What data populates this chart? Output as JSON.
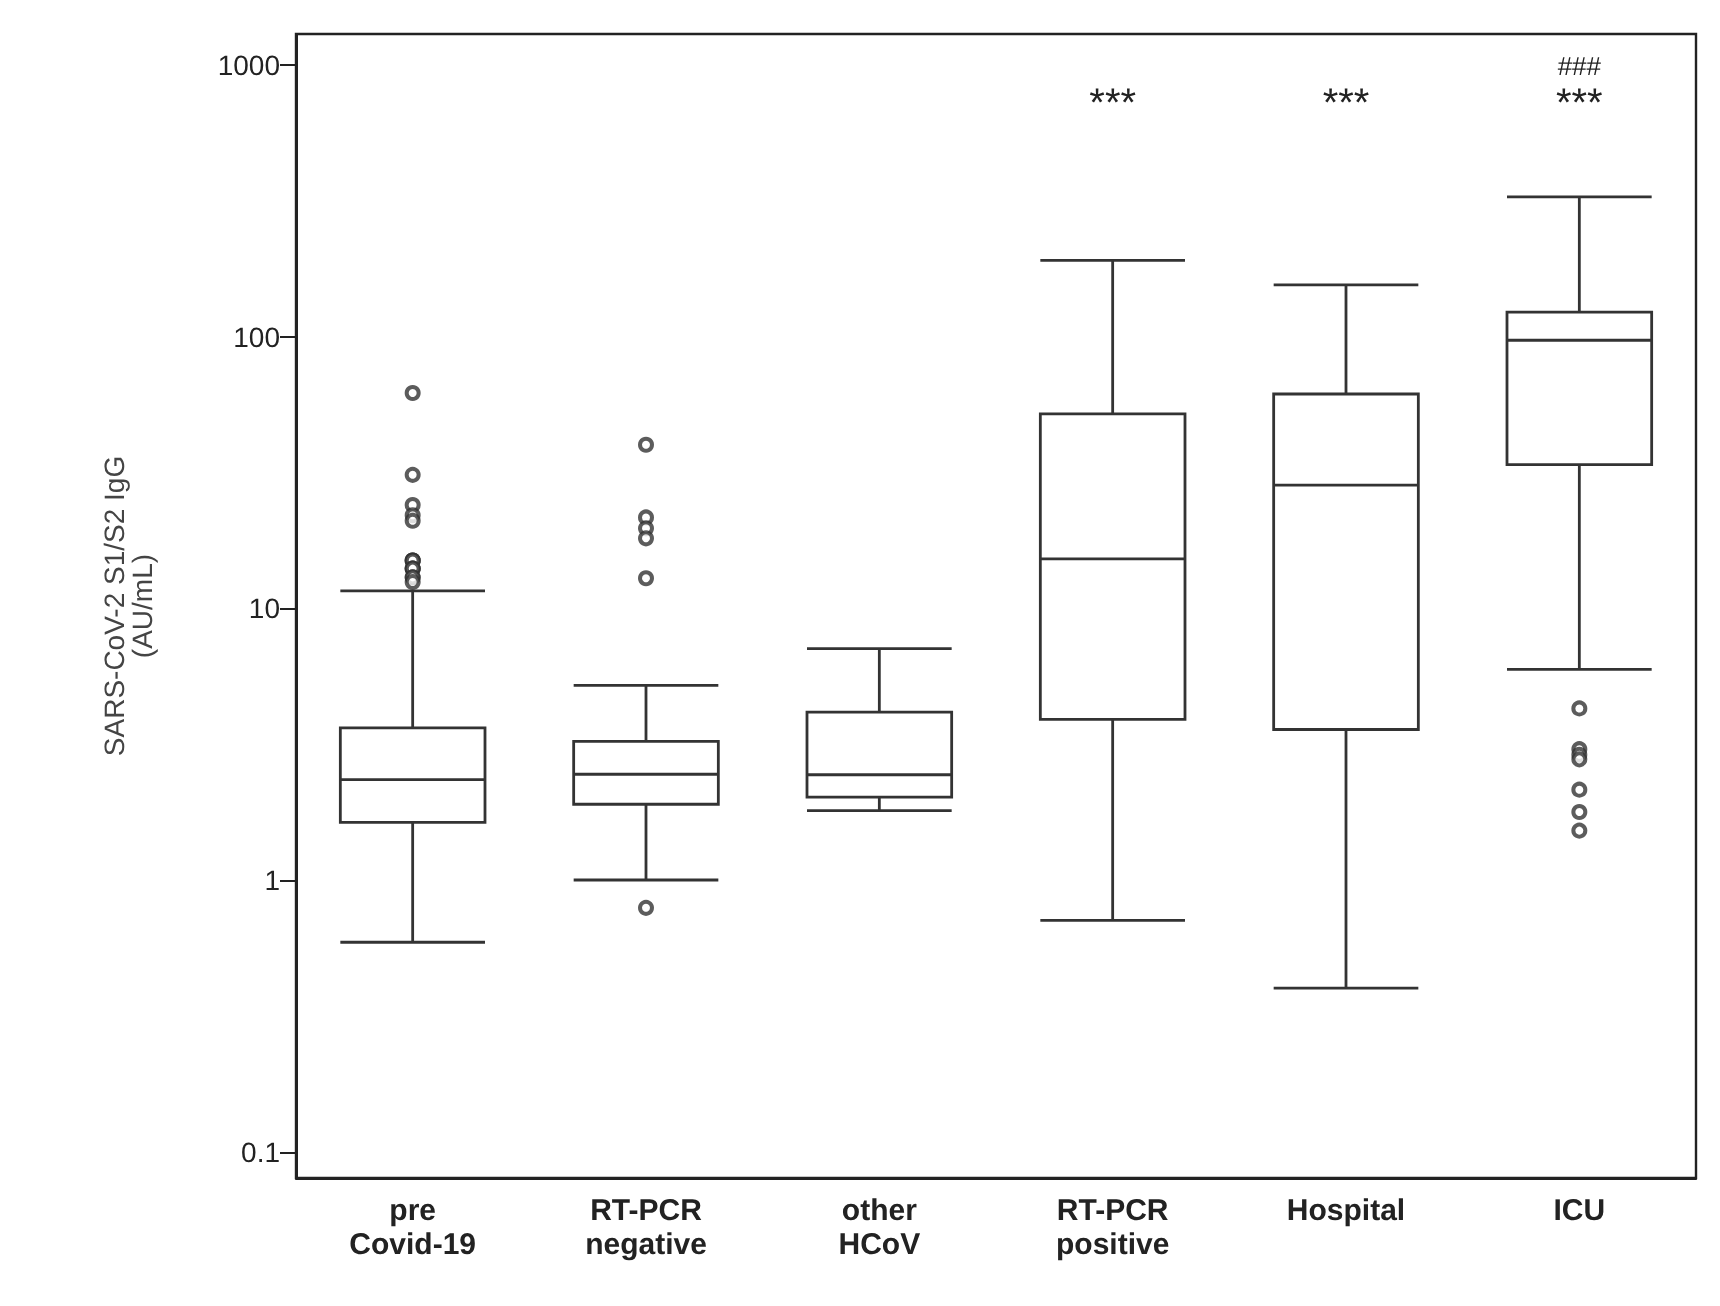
{
  "chart_data": {
    "type": "box",
    "ylabel": "SARS-CoV-2 S1/S2 IgG\n(AU/mL)",
    "categories": [
      "pre\nCovid-19",
      "RT-PCR\nnegative",
      "other\nHCoV",
      "RT-PCR\npositive",
      "Hospital",
      "ICU"
    ],
    "series": [
      {
        "color": "#333333",
        "boxes": [
          {
            "low": 0.59,
            "q1": 1.63,
            "median": 2.34,
            "q3": 3.63,
            "high": 11.6,
            "outliers": [
              62,
              31,
              24,
              22,
              21,
              15,
              15,
              15,
              14,
              14,
              14,
              13,
              13,
              12.5
            ]
          },
          {
            "low": 1.0,
            "q1": 1.9,
            "median": 2.45,
            "q3": 3.24,
            "high": 5.2,
            "outliers": [
              0.79,
              40,
              21.6,
              19.7,
              18.1,
              12.9
            ]
          },
          {
            "low": 1.8,
            "q1": 2.02,
            "median": 2.44,
            "q3": 4.15,
            "high": 7.1
          },
          {
            "low": 0.71,
            "q1": 3.9,
            "median": 15.2,
            "q3": 52,
            "high": 191
          },
          {
            "low": 0.4,
            "q1": 3.58,
            "median": 28.4,
            "q3": 61.5,
            "high": 155
          },
          {
            "low": 5.96,
            "q1": 33.8,
            "median": 97,
            "q3": 123,
            "high": 327,
            "outliers": [
              4.28,
              3.03,
              2.89,
              2.78,
              2.15,
              1.78,
              1.52
            ]
          }
        ]
      }
    ],
    "annotations": [
      "***",
      "***",
      "***",
      "###"
    ],
    "log": true,
    "ylim": [
      0.08,
      1300
    ],
    "yticks": [
      0.1,
      1,
      10,
      100,
      1000
    ],
    "grid": false
  }
}
